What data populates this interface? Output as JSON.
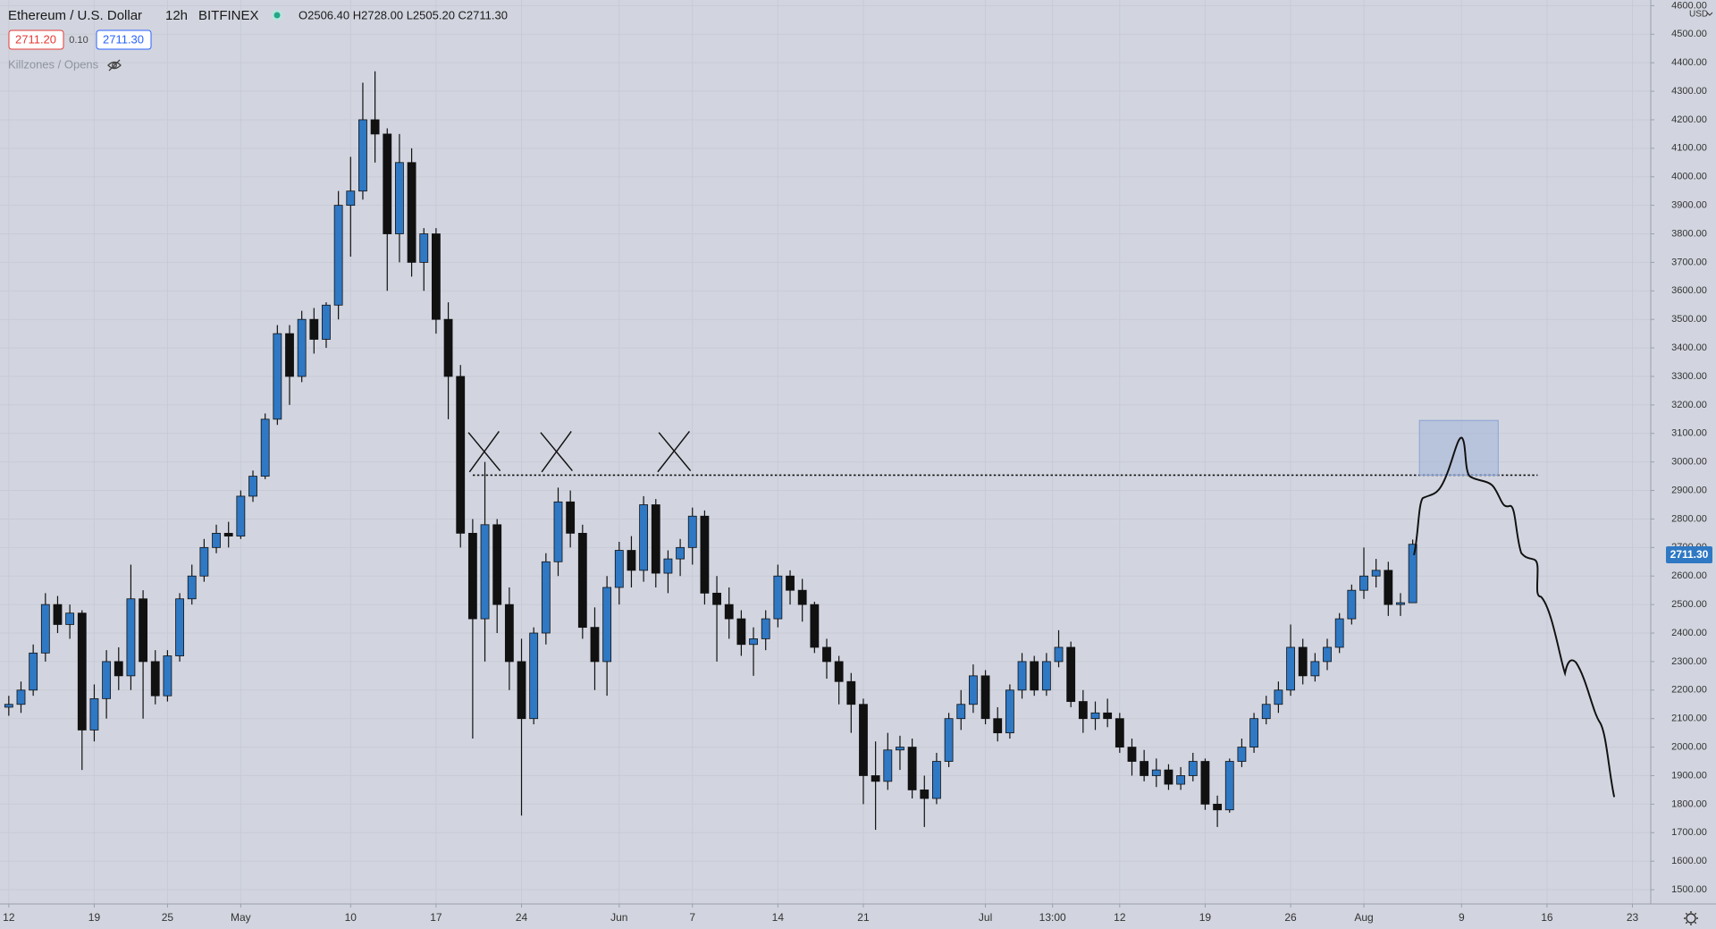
{
  "header": {
    "symbol": "Ethereum / U.S. Dollar",
    "interval": "12h",
    "exchange": "BITFINEX",
    "ohlc": "O2506.40 H2728.00 L2505.20 C2711.30",
    "bid": "2711.20",
    "spread": "0.10",
    "ask": "2711.30",
    "indicator": "Killzones / Opens"
  },
  "chart_data": {
    "type": "candlestick",
    "currency": "USD",
    "last_label": "2711.30",
    "grid": true,
    "up_color": "#2f78c4",
    "down_color": "#111111",
    "xlim": [
      -0.72,
      134.5
    ],
    "ylim": [
      1450,
      4620
    ],
    "xticks": [
      {
        "value": 0,
        "label": "12"
      },
      {
        "value": 7,
        "label": "19"
      },
      {
        "value": 13,
        "label": "25"
      },
      {
        "value": 19,
        "label": "May"
      },
      {
        "value": 28,
        "label": "10"
      },
      {
        "value": 35,
        "label": "17"
      },
      {
        "value": 42,
        "label": "24"
      },
      {
        "value": 50,
        "label": "Jun"
      },
      {
        "value": 56,
        "label": "7"
      },
      {
        "value": 63,
        "label": "14"
      },
      {
        "value": 70,
        "label": "21"
      },
      {
        "value": 80,
        "label": "Jul"
      },
      {
        "value": 85.5,
        "label": "13:00"
      },
      {
        "value": 91,
        "label": "12"
      },
      {
        "value": 98,
        "label": "19"
      },
      {
        "value": 105,
        "label": "26"
      },
      {
        "value": 111,
        "label": "Aug"
      },
      {
        "value": 119,
        "label": "9"
      },
      {
        "value": 126,
        "label": "16"
      },
      {
        "value": 133,
        "label": "23"
      }
    ],
    "yticks": [
      {
        "value": 1500,
        "label": "1500.00"
      },
      {
        "value": 1600,
        "label": "1600.00"
      },
      {
        "value": 1700,
        "label": "1700.00"
      },
      {
        "value": 1800,
        "label": "1800.00"
      },
      {
        "value": 1900,
        "label": "1900.00"
      },
      {
        "value": 2000,
        "label": "2000.00"
      },
      {
        "value": 2100,
        "label": "2100.00"
      },
      {
        "value": 2200,
        "label": "2200.00"
      },
      {
        "value": 2300,
        "label": "2300.00"
      },
      {
        "value": 2400,
        "label": "2400.00"
      },
      {
        "value": 2500,
        "label": "2500.00"
      },
      {
        "value": 2600,
        "label": "2600.00"
      },
      {
        "value": 2700,
        "label": "2700.00"
      },
      {
        "value": 2800,
        "label": "2800.00"
      },
      {
        "value": 2900,
        "label": "2900.00"
      },
      {
        "value": 3000,
        "label": "3000.00"
      },
      {
        "value": 3100,
        "label": "3100.00"
      },
      {
        "value": 3200,
        "label": "3200.00"
      },
      {
        "value": 3300,
        "label": "3300.00"
      },
      {
        "value": 3400,
        "label": "3400.00"
      },
      {
        "value": 3500,
        "label": "3500.00"
      },
      {
        "value": 3600,
        "label": "3600.00"
      },
      {
        "value": 3700,
        "label": "3700.00"
      },
      {
        "value": 3800,
        "label": "3800.00"
      },
      {
        "value": 3900,
        "label": "3900.00"
      },
      {
        "value": 4000,
        "label": "4000.00"
      },
      {
        "value": 4100,
        "label": "4100.00"
      },
      {
        "value": 4200,
        "label": "4200.00"
      },
      {
        "value": 4300,
        "label": "4300.00"
      },
      {
        "value": 4400,
        "label": "4400.00"
      },
      {
        "value": 4500,
        "label": "4500.00"
      },
      {
        "value": 4600,
        "label": "4600.00"
      }
    ],
    "x": [
      0,
      1,
      2,
      3,
      4,
      5,
      6,
      7,
      8,
      9,
      10,
      11,
      12,
      13,
      14,
      15,
      16,
      17,
      18,
      19,
      20,
      21,
      22,
      23,
      24,
      25,
      26,
      27,
      28,
      29,
      30,
      31,
      32,
      33,
      34,
      35,
      36,
      37,
      38,
      39,
      40,
      41,
      42,
      43,
      44,
      45,
      46,
      47,
      48,
      49,
      50,
      51,
      52,
      53,
      54,
      55,
      56,
      57,
      58,
      59,
      60,
      61,
      62,
      63,
      64,
      65,
      66,
      67,
      68,
      69,
      70,
      71,
      72,
      73,
      74,
      75,
      76,
      77,
      78,
      79,
      80,
      81,
      82,
      83,
      84,
      85,
      86,
      87,
      88,
      89,
      90,
      91,
      92,
      93,
      94,
      95,
      96,
      97,
      98,
      99,
      100,
      101,
      102,
      103,
      104,
      105,
      106,
      107,
      108,
      109,
      110,
      111,
      112,
      113,
      114,
      115
    ],
    "open": [
      2140,
      2150,
      2200,
      2330,
      2500,
      2430,
      2470,
      2060,
      2170,
      2300,
      2250,
      2520,
      2300,
      2180,
      2320,
      2520,
      2600,
      2700,
      2750,
      2740,
      2880,
      2950,
      3150,
      3450,
      3300,
      3500,
      3430,
      3550,
      3900,
      3950,
      4200,
      4150,
      3800,
      4050,
      3700,
      3800,
      3500,
      3300,
      2750,
      2450,
      2780,
      2500,
      2300,
      2100,
      2400,
      2650,
      2860,
      2750,
      2420,
      2300,
      2560,
      2690,
      2620,
      2850,
      2610,
      2660,
      2700,
      2810,
      2540,
      2500,
      2450,
      2360,
      2380,
      2450,
      2600,
      2550,
      2500,
      2350,
      2300,
      2230,
      2150,
      1900,
      1880,
      1990,
      2000,
      1850,
      1820,
      1950,
      2100,
      2150,
      2250,
      2100,
      2050,
      2200,
      2300,
      2200,
      2300,
      2350,
      2160,
      2100,
      2120,
      2100,
      2000,
      1950,
      1900,
      1920,
      1870,
      1900,
      1950,
      1800,
      1780,
      1950,
      2000,
      2100,
      2150,
      2200,
      2350,
      2250,
      2300,
      2350,
      2450,
      2550,
      2600,
      2620,
      2500,
      2506.4
    ],
    "high": [
      2180,
      2230,
      2360,
      2540,
      2530,
      2500,
      2480,
      2220,
      2340,
      2350,
      2640,
      2550,
      2340,
      2340,
      2540,
      2640,
      2730,
      2780,
      2790,
      2900,
      2970,
      3170,
      3480,
      3480,
      3530,
      3540,
      3560,
      3950,
      4070,
      4330,
      4370,
      4170,
      4150,
      4100,
      3820,
      3820,
      3560,
      3340,
      2800,
      3000,
      2800,
      2560,
      2380,
      2420,
      2680,
      2910,
      2900,
      2780,
      2490,
      2600,
      2720,
      2740,
      2880,
      2870,
      2690,
      2730,
      2840,
      2830,
      2600,
      2560,
      2480,
      2420,
      2480,
      2640,
      2620,
      2590,
      2510,
      2380,
      2320,
      2260,
      2170,
      2020,
      2050,
      2040,
      2030,
      1900,
      1980,
      2120,
      2200,
      2290,
      2270,
      2140,
      2220,
      2330,
      2320,
      2330,
      2410,
      2370,
      2200,
      2160,
      2170,
      2120,
      2030,
      1990,
      1960,
      1940,
      1930,
      1980,
      1960,
      1830,
      1960,
      2030,
      2120,
      2180,
      2230,
      2430,
      2380,
      2330,
      2380,
      2470,
      2570,
      2700,
      2660,
      2650,
      2540,
      2728
    ],
    "low": [
      2110,
      2120,
      2180,
      2300,
      2400,
      2380,
      1920,
      2020,
      2100,
      2200,
      2200,
      2100,
      2150,
      2160,
      2300,
      2500,
      2580,
      2680,
      2700,
      2730,
      2860,
      2940,
      3130,
      3200,
      3280,
      3380,
      3400,
      3500,
      3720,
      3920,
      4050,
      3600,
      3700,
      3650,
      3600,
      3450,
      3150,
      2700,
      2030,
      2300,
      2400,
      2200,
      1760,
      2080,
      2360,
      2600,
      2700,
      2380,
      2200,
      2180,
      2500,
      2560,
      2580,
      2560,
      2540,
      2600,
      2640,
      2500,
      2300,
      2380,
      2320,
      2250,
      2340,
      2420,
      2500,
      2440,
      2330,
      2240,
      2150,
      2050,
      1800,
      1710,
      1850,
      1920,
      1820,
      1720,
      1800,
      1930,
      2060,
      2120,
      2080,
      2020,
      2030,
      2170,
      2180,
      2180,
      2280,
      2140,
      2050,
      2060,
      2070,
      1980,
      1900,
      1880,
      1860,
      1850,
      1850,
      1880,
      1780,
      1720,
      1770,
      1930,
      1980,
      2080,
      2120,
      2180,
      2220,
      2230,
      2270,
      2330,
      2430,
      2520,
      2560,
      2460,
      2460,
      2505.2
    ],
    "close": [
      2150,
      2200,
      2330,
      2500,
      2430,
      2470,
      2060,
      2170,
      2300,
      2250,
      2520,
      2300,
      2180,
      2320,
      2520,
      2600,
      2700,
      2750,
      2740,
      2880,
      2950,
      3150,
      3450,
      3300,
      3500,
      3430,
      3550,
      3900,
      3950,
      4200,
      4150,
      3800,
      4050,
      3700,
      3800,
      3500,
      3300,
      2750,
      2450,
      2780,
      2500,
      2300,
      2100,
      2400,
      2650,
      2860,
      2750,
      2420,
      2300,
      2560,
      2690,
      2620,
      2850,
      2610,
      2660,
      2700,
      2810,
      2540,
      2500,
      2450,
      2360,
      2380,
      2450,
      2600,
      2550,
      2500,
      2350,
      2300,
      2230,
      2150,
      1900,
      1880,
      1990,
      2000,
      1850,
      1820,
      1950,
      2100,
      2150,
      2250,
      2100,
      2050,
      2200,
      2300,
      2200,
      2300,
      2350,
      2160,
      2100,
      2120,
      2100,
      2000,
      1950,
      1900,
      1920,
      1870,
      1900,
      1950,
      1800,
      1780,
      1950,
      2000,
      2100,
      2150,
      2200,
      2350,
      2250,
      2300,
      2350,
      2450,
      2550,
      2600,
      2620,
      2500,
      2506.4,
      2711.3
    ]
  }
}
